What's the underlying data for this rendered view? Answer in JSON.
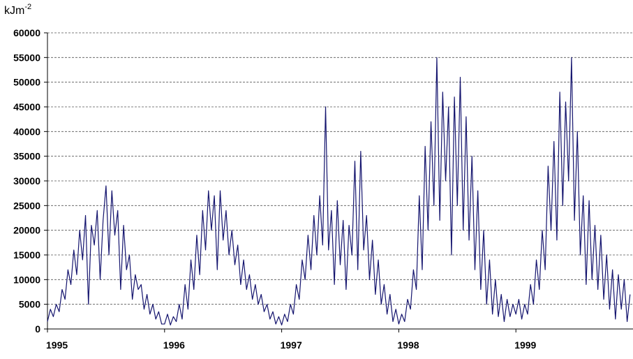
{
  "chart_data": {
    "type": "line",
    "y_label": "kJm",
    "y_label_sup": "-2",
    "color": "#14146e",
    "xlim": [
      1995,
      2000
    ],
    "xticks": [
      1995,
      1996,
      1997,
      1998,
      1999
    ],
    "ylim": [
      0,
      60000
    ],
    "yticks": [
      0,
      5000,
      10000,
      15000,
      20000,
      25000,
      30000,
      35000,
      40000,
      45000,
      50000,
      55000,
      60000
    ],
    "grid": true,
    "x": [
      1995,
      1995.025,
      1995.05,
      1995.075,
      1995.1,
      1995.125,
      1995.15,
      1995.175,
      1995.2,
      1995.225,
      1995.25,
      1995.275,
      1995.3,
      1995.325,
      1995.35,
      1995.375,
      1995.4,
      1995.425,
      1995.45,
      1995.475,
      1995.5,
      1995.525,
      1995.55,
      1995.575,
      1995.6,
      1995.625,
      1995.65,
      1995.675,
      1995.7,
      1995.725,
      1995.75,
      1995.775,
      1995.8,
      1995.825,
      1995.85,
      1995.875,
      1995.9,
      1995.925,
      1995.95,
      1995.975,
      1996,
      1996.025,
      1996.05,
      1996.075,
      1996.1,
      1996.125,
      1996.15,
      1996.175,
      1996.2,
      1996.225,
      1996.25,
      1996.275,
      1996.3,
      1996.325,
      1996.35,
      1996.375,
      1996.4,
      1996.425,
      1996.45,
      1996.475,
      1996.5,
      1996.525,
      1996.55,
      1996.575,
      1996.6,
      1996.625,
      1996.65,
      1996.675,
      1996.7,
      1996.725,
      1996.75,
      1996.775,
      1996.8,
      1996.825,
      1996.85,
      1996.875,
      1996.9,
      1996.925,
      1996.95,
      1996.975,
      1997,
      1997.025,
      1997.05,
      1997.075,
      1997.1,
      1997.125,
      1997.15,
      1997.175,
      1997.2,
      1997.225,
      1997.25,
      1997.275,
      1997.3,
      1997.325,
      1997.35,
      1997.375,
      1997.4,
      1997.425,
      1997.45,
      1997.475,
      1997.5,
      1997.525,
      1997.55,
      1997.575,
      1997.6,
      1997.625,
      1997.65,
      1997.675,
      1997.7,
      1997.725,
      1997.75,
      1997.775,
      1997.8,
      1997.825,
      1997.85,
      1997.875,
      1997.9,
      1997.925,
      1997.95,
      1997.975,
      1998,
      1998.025,
      1998.05,
      1998.075,
      1998.1,
      1998.125,
      1998.15,
      1998.175,
      1998.2,
      1998.225,
      1998.25,
      1998.275,
      1998.3,
      1998.325,
      1998.35,
      1998.375,
      1998.4,
      1998.425,
      1998.45,
      1998.475,
      1998.5,
      1998.525,
      1998.55,
      1998.575,
      1998.6,
      1998.625,
      1998.65,
      1998.675,
      1998.7,
      1998.725,
      1998.75,
      1998.775,
      1998.8,
      1998.825,
      1998.85,
      1998.875,
      1998.9,
      1998.925,
      1998.95,
      1998.975,
      1999,
      1999.025,
      1999.05,
      1999.075,
      1999.1,
      1999.125,
      1999.15,
      1999.175,
      1999.2,
      1999.225,
      1999.25,
      1999.275,
      1999.3,
      1999.325,
      1999.35,
      1999.375,
      1999.4,
      1999.425,
      1999.45,
      1999.475,
      1999.5,
      1999.525,
      1999.55,
      1999.575,
      1999.6,
      1999.625,
      1999.65,
      1999.675,
      1999.7,
      1999.725,
      1999.75,
      1999.775,
      1999.8,
      1999.825,
      1999.85,
      1999.875,
      1999.9,
      1999.925,
      1999.95,
      1999.975
    ],
    "values": [
      1500,
      4000,
      2500,
      5000,
      3500,
      8000,
      6000,
      12000,
      9000,
      16000,
      11000,
      20000,
      14000,
      23000,
      5000,
      21000,
      17000,
      24000,
      10000,
      22000,
      29000,
      15000,
      28000,
      19000,
      24000,
      8000,
      21000,
      12000,
      15000,
      6000,
      11000,
      8000,
      9000,
      4000,
      7000,
      3000,
      5000,
      2000,
      3500,
      1000,
      1000,
      3000,
      800,
      2500,
      1500,
      5000,
      2000,
      9000,
      4000,
      14000,
      8000,
      19000,
      11000,
      24000,
      16000,
      28000,
      20000,
      27000,
      12000,
      28000,
      18000,
      24000,
      15000,
      20000,
      13000,
      17000,
      9000,
      14000,
      8000,
      11000,
      6000,
      9000,
      5000,
      7000,
      3500,
      5000,
      2000,
      3500,
      1000,
      2500,
      800,
      3000,
      1500,
      5000,
      3000,
      9000,
      6000,
      14000,
      10000,
      19000,
      12000,
      23000,
      15000,
      27000,
      17000,
      45000,
      16000,
      24000,
      9000,
      26000,
      13000,
      22000,
      8000,
      21000,
      15000,
      34000,
      12000,
      36000,
      16000,
      23000,
      10000,
      18000,
      7000,
      14000,
      5000,
      9000,
      3000,
      7000,
      1500,
      4000,
      1000,
      3000,
      1500,
      6000,
      4000,
      12000,
      8000,
      27000,
      12000,
      37000,
      20000,
      42000,
      25000,
      55000,
      22000,
      48000,
      30000,
      45000,
      15000,
      47000,
      25000,
      51000,
      20000,
      43000,
      18000,
      35000,
      12000,
      28000,
      8000,
      20000,
      5000,
      14000,
      3000,
      10000,
      2500,
      7000,
      1500,
      6000,
      2500,
      5000,
      3000,
      6000,
      2000,
      5000,
      3000,
      9000,
      5000,
      14000,
      8000,
      20000,
      12000,
      33000,
      20000,
      38000,
      18000,
      48000,
      25000,
      46000,
      30000,
      55000,
      22000,
      40000,
      15000,
      27000,
      9000,
      26000,
      10000,
      21000,
      8000,
      19000,
      6000,
      15000,
      4000,
      12000,
      2000,
      11000,
      4000,
      10000,
      1500,
      7000
    ]
  }
}
